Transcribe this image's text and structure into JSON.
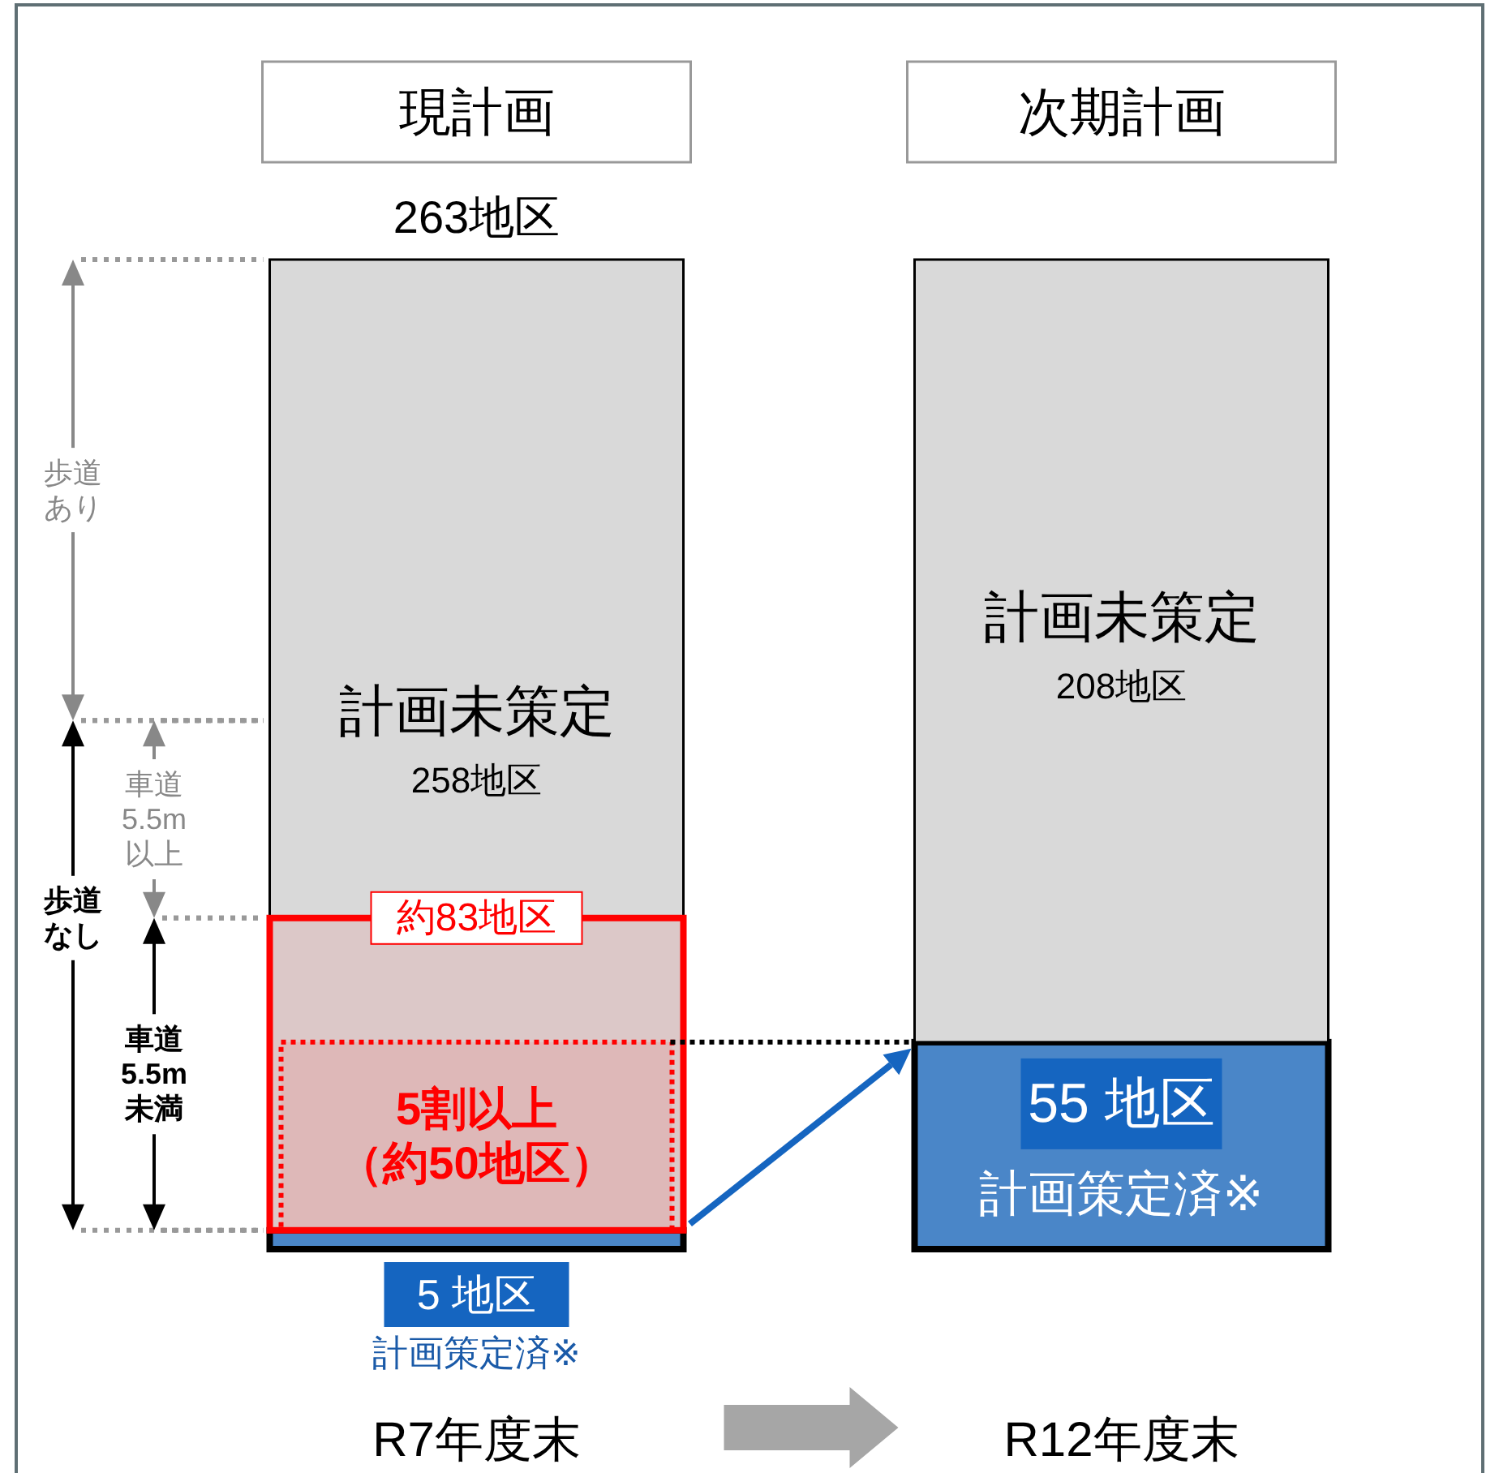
{
  "chart_data": {
    "type": "bar",
    "stacked": true,
    "categories": [
      "R7年度末",
      "R12年度末"
    ],
    "series": [
      {
        "name": "計画策定済※",
        "color": "#4a86c8",
        "values": [
          5,
          55
        ],
        "value_labels": [
          "5 地区",
          "55 地区"
        ]
      },
      {
        "name": "計画未策定",
        "color": "#d9d9d9",
        "values": [
          258,
          208
        ],
        "value_labels": [
          "258地区",
          "208地区"
        ]
      }
    ],
    "totals": [
      "263地区",
      null
    ],
    "bands": [
      {
        "axis": "y",
        "from": 5,
        "to": 88,
        "label": "約83地区",
        "color": "#ff0000"
      },
      {
        "axis": "y",
        "from": 5,
        "to": 55,
        "label": "5割以上（約50地区）",
        "color": "#ff0000"
      }
    ],
    "ref_lines": [
      {
        "axis": "y",
        "value": 55,
        "color": "#000000",
        "line_style": "dotted"
      }
    ],
    "annotations": [
      "現計画",
      "次期計画",
      "歩道あり",
      "車道\n5.5m\n以上",
      "歩道なし",
      "車道\n5.5m\n未満"
    ]
  }
}
